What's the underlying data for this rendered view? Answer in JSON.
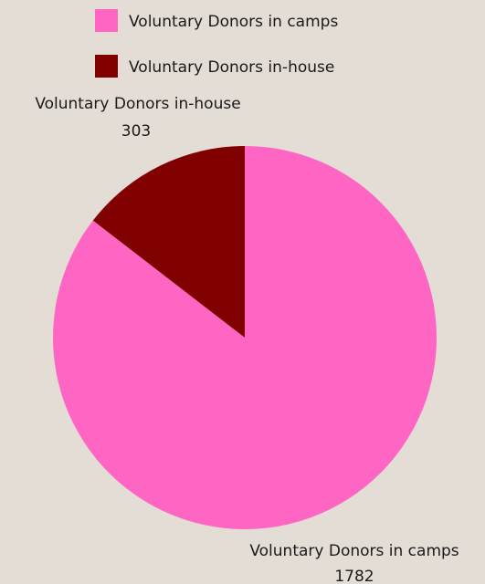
{
  "chart_data": {
    "type": "pie",
    "title": "",
    "categories": [
      "Voluntary Donors in camps",
      "Voluntary Donors in-house"
    ],
    "values": [
      1782,
      303
    ],
    "colors": [
      "#ff66c4",
      "#800000"
    ],
    "start_angle_deg": 0,
    "direction": "clockwise",
    "legend": {
      "position": "top",
      "items": [
        {
          "label": "Voluntary Donors in camps",
          "color": "#ff66c4"
        },
        {
          "label": "Voluntary Donors in-house",
          "color": "#800000"
        }
      ]
    },
    "data_labels": [
      {
        "name": "Voluntary Donors in camps",
        "value": "1782"
      },
      {
        "name": "Voluntary Donors in-house",
        "value": "303"
      }
    ]
  },
  "background_color": "#e4ddd6"
}
